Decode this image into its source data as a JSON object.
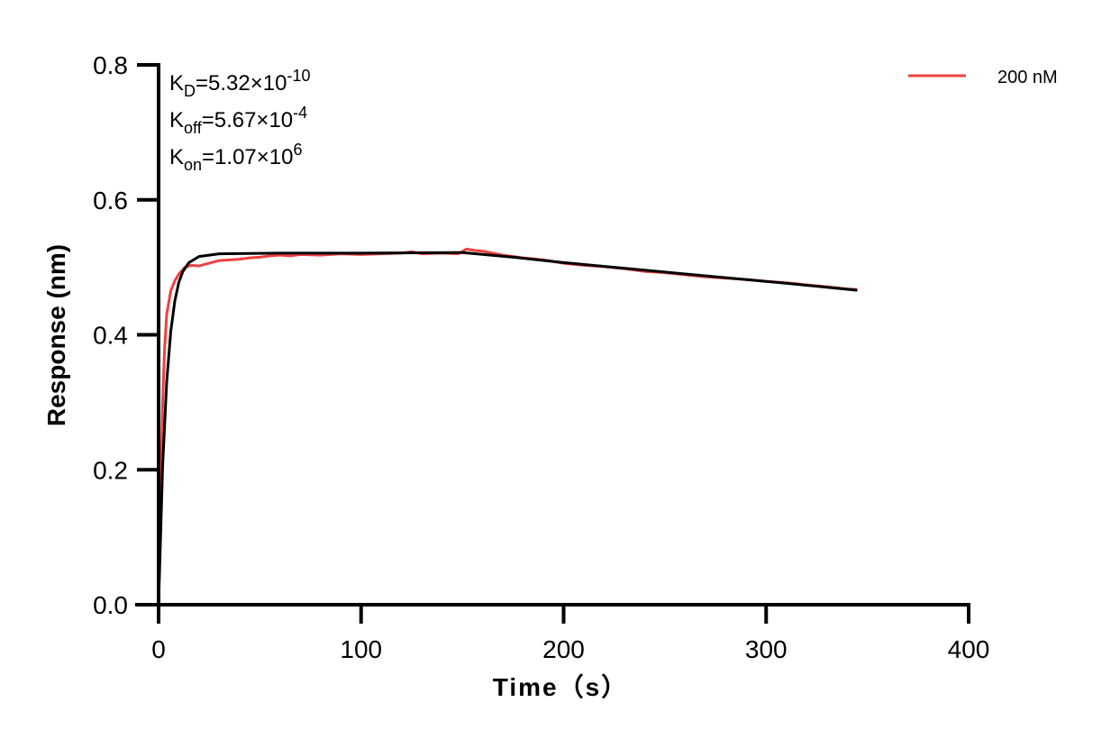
{
  "chart_data": {
    "type": "line",
    "xlabel": "Time（s）",
    "ylabel": "Response (nm)",
    "xlim": [
      0,
      400
    ],
    "ylim": [
      0,
      0.8
    ],
    "xticks": [
      "0",
      "100",
      "200",
      "300",
      "400"
    ],
    "yticks": [
      "0.0",
      "0.2",
      "0.4",
      "0.6",
      "0.8"
    ],
    "grid": false,
    "legend_position": "top-right",
    "annotations": [
      {
        "main": "K",
        "sub": "D",
        "rest": "=5.32×10",
        "sup": "-10"
      },
      {
        "main": "K",
        "sub": "off",
        "rest": "=5.67×10",
        "sup": "-4"
      },
      {
        "main": "K",
        "sub": "on",
        "rest": "=1.07×10",
        "sup": "6"
      }
    ],
    "series": [
      {
        "name": "200 nM",
        "color": "#ef4040",
        "x": [
          0,
          1,
          2,
          3,
          4,
          6,
          8,
          10,
          13,
          16,
          20,
          25,
          30,
          35,
          40,
          45,
          50,
          55,
          60,
          65,
          70,
          80,
          90,
          100,
          110,
          120,
          125,
          130,
          140,
          148,
          152,
          156,
          160,
          170,
          180,
          190,
          200,
          210,
          220,
          230,
          240,
          250,
          260,
          270,
          280,
          290,
          300,
          310,
          320,
          330,
          340,
          345
        ],
        "y": [
          0,
          0.15,
          0.3,
          0.38,
          0.43,
          0.465,
          0.48,
          0.49,
          0.5,
          0.503,
          0.502,
          0.506,
          0.51,
          0.511,
          0.512,
          0.514,
          0.515,
          0.517,
          0.518,
          0.517,
          0.519,
          0.518,
          0.52,
          0.519,
          0.52,
          0.521,
          0.523,
          0.52,
          0.521,
          0.52,
          0.527,
          0.525,
          0.524,
          0.518,
          0.514,
          0.511,
          0.506,
          0.503,
          0.501,
          0.498,
          0.494,
          0.492,
          0.489,
          0.486,
          0.484,
          0.482,
          0.479,
          0.477,
          0.474,
          0.471,
          0.468,
          0.467
        ]
      },
      {
        "color": "#000000",
        "x": [
          0,
          2,
          4,
          6,
          8,
          10,
          12,
          15,
          20,
          30,
          60,
          100,
          150,
          175,
          200,
          225,
          250,
          275,
          300,
          325,
          345
        ],
        "y": [
          0,
          0.206,
          0.33,
          0.405,
          0.45,
          0.478,
          0.494,
          0.507,
          0.516,
          0.52,
          0.521,
          0.521,
          0.522,
          0.515,
          0.507,
          0.5,
          0.493,
          0.486,
          0.479,
          0.472,
          0.466
        ]
      }
    ]
  }
}
